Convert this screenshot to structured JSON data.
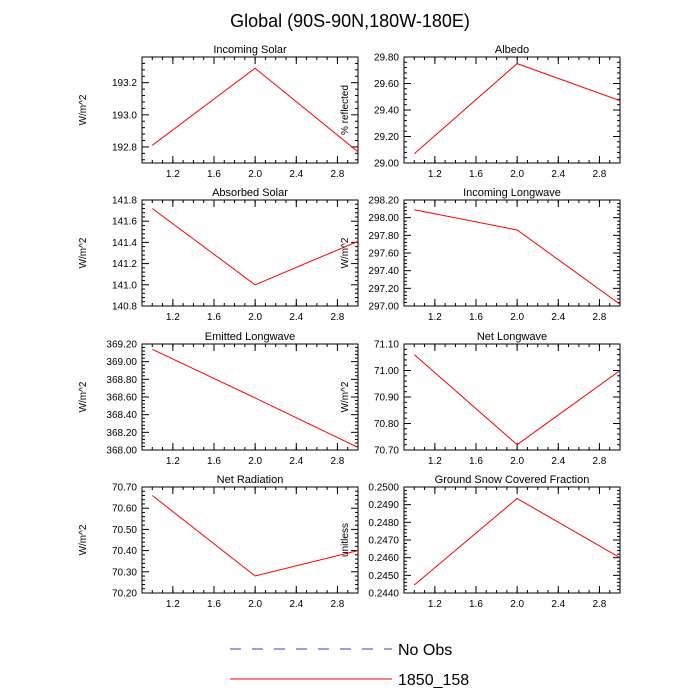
{
  "figure_title": "Global (90S-90N,180W-180E)",
  "legend": [
    {
      "label": "No Obs",
      "color": "#3b3bcc",
      "style": "dashed"
    },
    {
      "label": "1850_158",
      "color": "#ff0000",
      "style": "solid"
    }
  ],
  "chart_data": [
    {
      "type": "line",
      "title": "Incoming Solar",
      "ylabel": "W/m^2",
      "xlim": [
        0.9,
        3.0
      ],
      "ylim": [
        192.7,
        193.36
      ],
      "xticks": [
        1.2,
        1.6,
        2.0,
        2.4,
        2.8
      ],
      "xtick_labels": [
        "1.2",
        "1.6",
        "2.0",
        "2.4",
        "2.8"
      ],
      "yticks": [
        192.8,
        193.0,
        193.2
      ],
      "ytick_labels": [
        "192.8",
        "193.0",
        "193.2"
      ],
      "series": [
        {
          "name": "1850_158",
          "color": "#ff0000",
          "x": [
            1,
            2,
            3
          ],
          "y": [
            192.81,
            193.29,
            192.77
          ]
        }
      ]
    },
    {
      "type": "line",
      "title": "Albedo",
      "ylabel": "% reflected",
      "xlim": [
        0.9,
        3.0
      ],
      "ylim": [
        29.0,
        29.8
      ],
      "xticks": [
        1.2,
        1.6,
        2.0,
        2.4,
        2.8
      ],
      "xtick_labels": [
        "1.2",
        "1.6",
        "2.0",
        "2.4",
        "2.8"
      ],
      "yticks": [
        29.0,
        29.2,
        29.4,
        29.6,
        29.8
      ],
      "ytick_labels": [
        "29.00",
        "29.20",
        "29.40",
        "29.60",
        "29.80"
      ],
      "series": [
        {
          "name": "1850_158",
          "color": "#ff0000",
          "x": [
            1,
            2,
            3
          ],
          "y": [
            29.07,
            29.75,
            29.47
          ]
        }
      ]
    },
    {
      "type": "line",
      "title": "Absorbed Solar",
      "ylabel": "W/m^2",
      "xlim": [
        0.9,
        3.0
      ],
      "ylim": [
        140.8,
        141.8
      ],
      "xticks": [
        1.2,
        1.6,
        2.0,
        2.4,
        2.8
      ],
      "xtick_labels": [
        "1.2",
        "1.6",
        "2.0",
        "2.4",
        "2.8"
      ],
      "yticks": [
        140.8,
        141.0,
        141.2,
        141.4,
        141.6,
        141.8
      ],
      "ytick_labels": [
        "140.8",
        "141.0",
        "141.2",
        "141.4",
        "141.6",
        "141.8"
      ],
      "series": [
        {
          "name": "1850_158",
          "color": "#ff0000",
          "x": [
            1,
            2,
            3
          ],
          "y": [
            141.72,
            141.0,
            141.41
          ]
        }
      ]
    },
    {
      "type": "line",
      "title": "Incoming Longwave",
      "ylabel": "W/m^2",
      "xlim": [
        0.9,
        3.0
      ],
      "ylim": [
        297.0,
        298.2
      ],
      "xticks": [
        1.2,
        1.6,
        2.0,
        2.4,
        2.8
      ],
      "xtick_labels": [
        "1.2",
        "1.6",
        "2.0",
        "2.4",
        "2.8"
      ],
      "yticks": [
        297.0,
        297.2,
        297.4,
        297.6,
        297.8,
        298.0,
        298.2
      ],
      "ytick_labels": [
        "297.00",
        "297.20",
        "297.40",
        "297.60",
        "297.80",
        "298.00",
        "298.20"
      ],
      "series": [
        {
          "name": "1850_158",
          "color": "#ff0000",
          "x": [
            1,
            2,
            3
          ],
          "y": [
            298.09,
            297.86,
            297.02
          ]
        }
      ]
    },
    {
      "type": "line",
      "title": "Emitted Longwave",
      "ylabel": "W/m^2",
      "xlim": [
        0.9,
        3.0
      ],
      "ylim": [
        368.0,
        369.2
      ],
      "xticks": [
        1.2,
        1.6,
        2.0,
        2.4,
        2.8
      ],
      "xtick_labels": [
        "1.2",
        "1.6",
        "2.0",
        "2.4",
        "2.8"
      ],
      "yticks": [
        368.0,
        368.2,
        368.4,
        368.6,
        368.8,
        369.0,
        369.2
      ],
      "ytick_labels": [
        "368.00",
        "368.20",
        "368.40",
        "368.60",
        "368.80",
        "369.00",
        "369.20"
      ],
      "series": [
        {
          "name": "1850_158",
          "color": "#ff0000",
          "x": [
            1,
            2,
            3
          ],
          "y": [
            369.14,
            368.59,
            368.03
          ]
        }
      ]
    },
    {
      "type": "line",
      "title": "Net Longwave",
      "ylabel": "W/m^2",
      "xlim": [
        0.9,
        3.0
      ],
      "ylim": [
        70.7,
        71.1
      ],
      "xticks": [
        1.2,
        1.6,
        2.0,
        2.4,
        2.8
      ],
      "xtick_labels": [
        "1.2",
        "1.6",
        "2.0",
        "2.4",
        "2.8"
      ],
      "yticks": [
        70.7,
        70.8,
        70.9,
        71.0,
        71.1
      ],
      "ytick_labels": [
        "70.70",
        "70.80",
        "70.90",
        "71.00",
        "71.10"
      ],
      "series": [
        {
          "name": "1850_158",
          "color": "#ff0000",
          "x": [
            1,
            2,
            3
          ],
          "y": [
            71.06,
            70.72,
            71.0
          ]
        }
      ]
    },
    {
      "type": "line",
      "title": "Net Radiation",
      "ylabel": "W/m^2",
      "xlim": [
        0.9,
        3.0
      ],
      "ylim": [
        70.2,
        70.7
      ],
      "xticks": [
        1.2,
        1.6,
        2.0,
        2.4,
        2.8
      ],
      "xtick_labels": [
        "1.2",
        "1.6",
        "2.0",
        "2.4",
        "2.8"
      ],
      "yticks": [
        70.2,
        70.3,
        70.4,
        70.5,
        70.6,
        70.7
      ],
      "ytick_labels": [
        "70.20",
        "70.30",
        "70.40",
        "70.50",
        "70.60",
        "70.70"
      ],
      "series": [
        {
          "name": "1850_158",
          "color": "#ff0000",
          "x": [
            1,
            2,
            3
          ],
          "y": [
            70.66,
            70.28,
            70.4
          ]
        }
      ]
    },
    {
      "type": "line",
      "title": "Ground Snow Covered Fraction",
      "ylabel": "unitless",
      "xlim": [
        0.9,
        3.0
      ],
      "ylim": [
        0.244,
        0.25
      ],
      "xticks": [
        1.2,
        1.6,
        2.0,
        2.4,
        2.8
      ],
      "xtick_labels": [
        "1.2",
        "1.6",
        "2.0",
        "2.4",
        "2.8"
      ],
      "yticks": [
        0.244,
        0.245,
        0.246,
        0.247,
        0.248,
        0.249,
        0.25
      ],
      "ytick_labels": [
        "0.2440",
        "0.2450",
        "0.2460",
        "0.2470",
        "0.2480",
        "0.2490",
        "0.2500"
      ],
      "series": [
        {
          "name": "1850_158",
          "color": "#ff0000",
          "x": [
            1,
            2,
            3
          ],
          "y": [
            0.24445,
            0.24935,
            0.246
          ]
        }
      ]
    }
  ]
}
